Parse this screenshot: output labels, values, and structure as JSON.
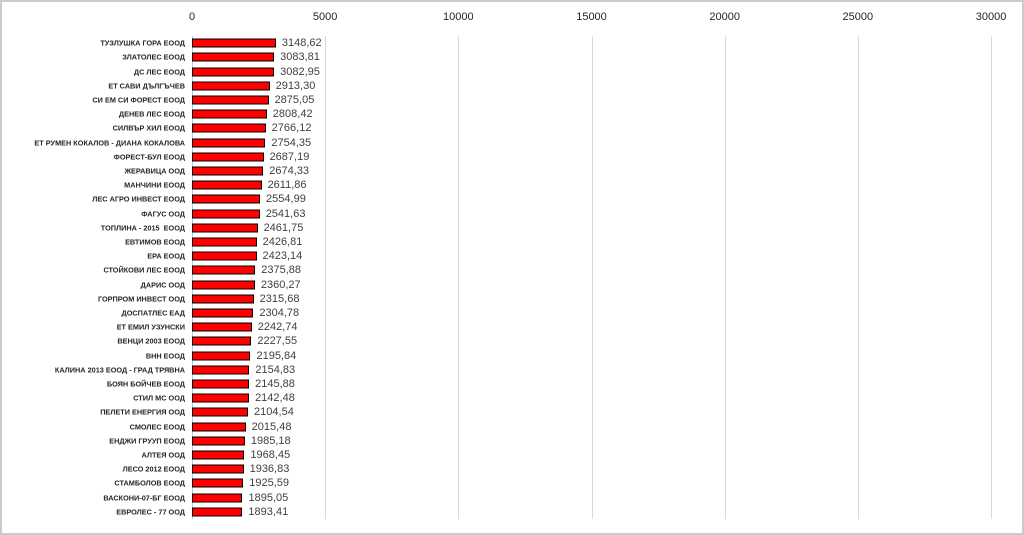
{
  "chart_data": {
    "type": "bar",
    "orientation": "horizontal",
    "title": "",
    "xlabel": "",
    "ylabel": "",
    "xlim": [
      0,
      30000
    ],
    "grid": "vertical",
    "legend": "none",
    "x_tick_labels": [
      "0",
      "5000",
      "10000",
      "15000",
      "20000",
      "25000",
      "30000"
    ],
    "x_tick_values": [
      0,
      5000,
      10000,
      15000,
      20000,
      25000,
      30000
    ],
    "bar_color": "#ff0000",
    "bar_border_color": "#000000",
    "gridline_color": "#d9d9d9",
    "axis_line_color": "#c6c6c6",
    "category_label_color": "#262626",
    "value_label_color": "#404040",
    "categories": [
      "ТУЗЛУШКА ГОРА ЕООД",
      "ЗЛАТОЛЕС ЕООД",
      "ДС ЛЕС ЕООД",
      "ЕТ САВИ ДЪЛГЪЧЕВ",
      "СИ ЕМ СИ ФОРЕСТ ЕООД",
      "ДЕНЕВ ЛЕС ЕООД",
      "СИЛВЪР ХИЛ ЕООД",
      "ЕТ РУМЕН КОКАЛОВ - ДИАНА КОКАЛОВА",
      "ФОРЕСТ-БУЛ ЕООД",
      "ЖЕРАВИЦА ООД",
      "МАНЧИНИ ЕООД",
      "ЛЕС АГРО ИНВЕСТ ЕООД",
      "ФАГУС ООД",
      "ТОПЛИНА - 2015  ЕООД",
      "ЕВТИМОВ ЕООД",
      "ЕРА ЕООД",
      "СТОЙКОВИ ЛЕС ЕООД",
      "ДАРИС ООД",
      "ГОРПРОМ ИНВЕСТ ООД",
      "ДОСПАТЛЕС ЕАД",
      "ЕТ ЕМИЛ УЗУНСКИ",
      "ВЕНЦИ 2003 ЕООД",
      "ВНН ЕООД",
      "КАЛИНА 2013 ЕООД - ГРАД ТРЯВНА",
      "БОЯН БОЙЧЕВ ЕООД",
      "СТИЛ МС ООД",
      "ПЕЛЕТИ ЕНЕРГИЯ ООД",
      "СМОЛЕС ЕООД",
      "ЕНДЖИ ГРУУП ЕООД",
      "АЛТЕЯ ООД",
      "ЛЕСО 2012 ЕООД",
      "СТАМБОЛОВ ЕООД",
      "ВАСКОНИ-07-БГ ЕООД",
      "ЕВРОЛЕС - 77 ООД"
    ],
    "values": [
      3148.62,
      3083.81,
      3082.95,
      2913.3,
      2875.05,
      2808.42,
      2766.12,
      2754.35,
      2687.19,
      2674.33,
      2611.86,
      2554.99,
      2541.63,
      2461.75,
      2426.81,
      2423.14,
      2375.88,
      2360.27,
      2315.68,
      2304.78,
      2242.74,
      2227.55,
      2195.84,
      2154.83,
      2145.88,
      2142.48,
      2104.54,
      2015.48,
      1985.18,
      1968.45,
      1936.83,
      1925.59,
      1895.05,
      1893.41
    ],
    "value_labels": [
      "3148,62",
      "3083,81",
      "3082,95",
      "2913,30",
      "2875,05",
      "2808,42",
      "2766,12",
      "2754,35",
      "2687,19",
      "2674,33",
      "2611,86",
      "2554,99",
      "2541,63",
      "2461,75",
      "2426,81",
      "2423,14",
      "2375,88",
      "2360,27",
      "2315,68",
      "2304,78",
      "2242,74",
      "2227,55",
      "2195,84",
      "2154,83",
      "2145,88",
      "2142,48",
      "2104,54",
      "2015,48",
      "1985,18",
      "1968,45",
      "1936,83",
      "1925,59",
      "1895,05",
      "1893,41"
    ]
  }
}
